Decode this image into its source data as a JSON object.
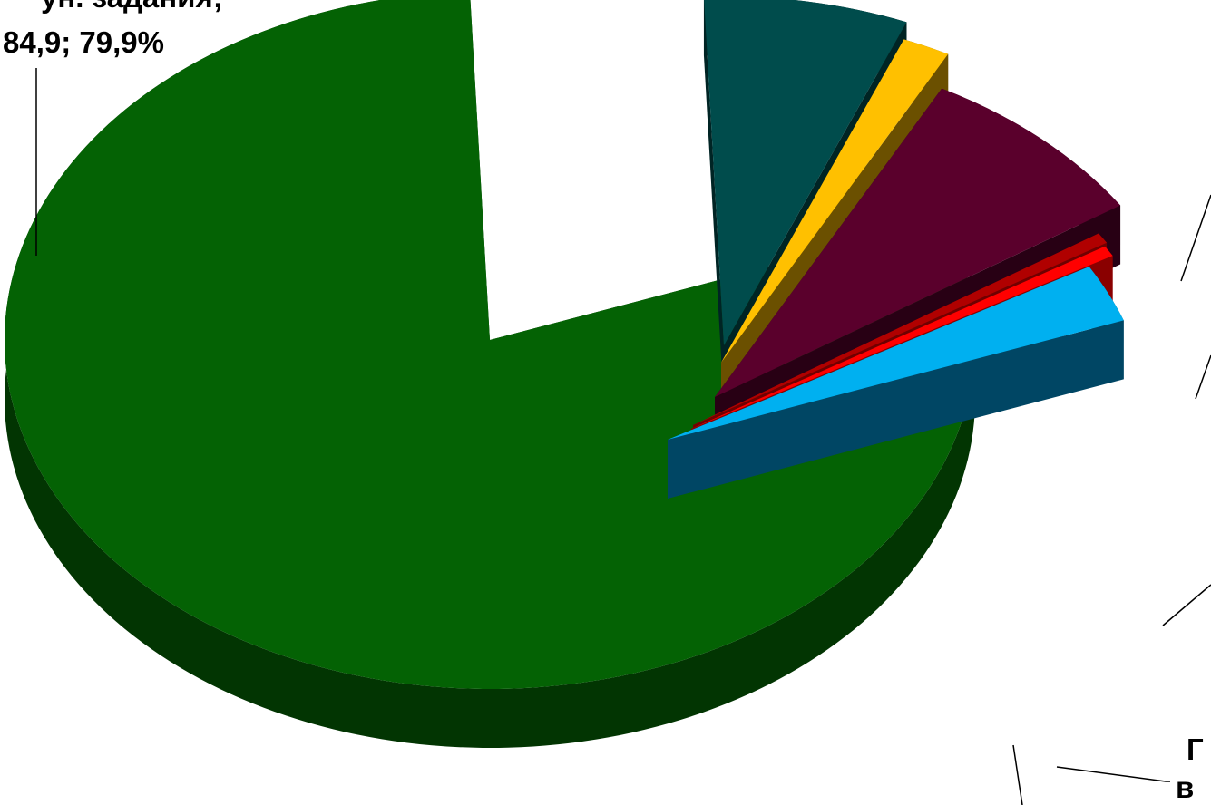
{
  "chart_data": {
    "type": "pie",
    "title": "",
    "legend": "none",
    "slices": [
      {
        "key": "main",
        "value": 79.9,
        "color": "#046204",
        "side": "#023502"
      },
      {
        "key": "teal",
        "value": 6.8,
        "color": "#004C4C",
        "side": "#002424"
      },
      {
        "key": "gold",
        "value": 1.6,
        "color": "#FFC000",
        "side": "#6B5000"
      },
      {
        "key": "maroon",
        "value": 8.0,
        "color": "#5A002C",
        "side": "#280014"
      },
      {
        "key": "dred",
        "value": 0.5,
        "color": "#B00000",
        "side": "#700000"
      },
      {
        "key": "red",
        "value": 0.5,
        "color": "#FF0000",
        "side": "#8A0000"
      },
      {
        "key": "cyan",
        "value": 2.7,
        "color": "#00B0F0",
        "side": "#004664"
      }
    ],
    "labels": [
      {
        "key": "main",
        "lines": [
          "ун. задания;",
          "84,9; 79,9%"
        ]
      },
      {
        "key": "tail1",
        "lines": [
          "Г"
        ]
      },
      {
        "key": "tail2",
        "lines": [
          "в"
        ]
      }
    ]
  }
}
